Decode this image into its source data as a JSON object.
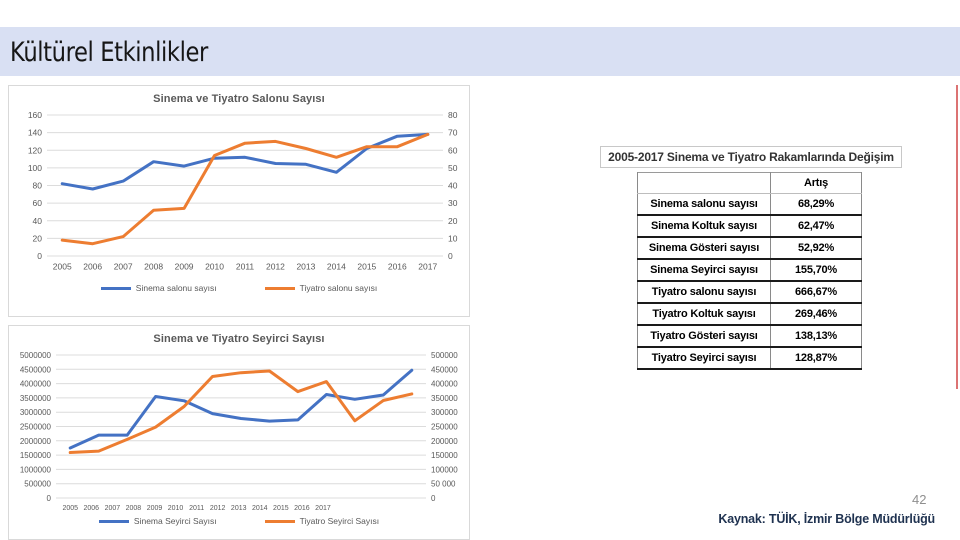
{
  "slide": {
    "title": "Kültürel Etkinlikler",
    "page_number": "42",
    "source": "Kaynak: TÜİK, İzmir Bölge Müdürlüğü"
  },
  "colors": {
    "banner_bg": "#D9E0F3",
    "series_blue": "#4472C4",
    "series_orange": "#ED7D31",
    "gridline": "#DCDCDC",
    "axis_text": "#595959",
    "accent_red": "#C00000"
  },
  "table": {
    "title": "2005-2017 Sinema ve Tiyatro Rakamlarında Değişim",
    "value_header": "Artış",
    "rows": [
      {
        "label": "Sinema salonu sayısı",
        "value": "68,29%"
      },
      {
        "label": "Sinema Koltuk sayısı",
        "value": "62,47%"
      },
      {
        "label": "Sinema Gösteri sayısı",
        "value": "52,92%"
      },
      {
        "label": "Sinema Seyirci sayısı",
        "value": "155,70%"
      },
      {
        "label": "Tiyatro salonu sayısı",
        "value": "666,67%"
      },
      {
        "label": "Tiyatro Koltuk sayısı",
        "value": "269,46%"
      },
      {
        "label": "Tiyatro Gösteri sayısı",
        "value": "138,13%"
      },
      {
        "label": "Tiyatro Seyirci sayısı",
        "value": "128,87%"
      }
    ]
  },
  "chart_data": [
    {
      "type": "line",
      "title": "Sinema ve Tiyatro Salonu Sayısı",
      "categories": [
        "2005",
        "2006",
        "2007",
        "2008",
        "2009",
        "2010",
        "2011",
        "2012",
        "2013",
        "2014",
        "2015",
        "2016",
        "2017"
      ],
      "grid": true,
      "legend_position": "bottom",
      "axes": {
        "left": {
          "min": 0,
          "max": 160,
          "step": 20,
          "ticks": [
            "160",
            "140",
            "120",
            "100",
            "80",
            "60",
            "40",
            "20",
            "0"
          ]
        },
        "right": {
          "min": 0,
          "max": 80,
          "step": 10,
          "ticks": [
            "80",
            "70",
            "60",
            "50",
            "40",
            "30",
            "20",
            "10",
            "0"
          ]
        }
      },
      "series": [
        {
          "name": "Sinema salonu sayısı",
          "axis": "left",
          "color": "#4472C4",
          "values": [
            82,
            76,
            85,
            107,
            102,
            111,
            112,
            105,
            104,
            95,
            122,
            136,
            138
          ]
        },
        {
          "name": "Tiyatro salonu sayısı",
          "axis": "right",
          "color": "#ED7D31",
          "values": [
            9,
            7,
            11,
            26,
            27,
            57,
            64,
            65,
            61,
            56,
            62,
            62,
            69
          ]
        }
      ]
    },
    {
      "type": "line",
      "title": "Sinema ve Tiyatro Seyirci Sayısı",
      "categories": [
        "2005",
        "2006",
        "2007",
        "2008",
        "2009",
        "2010",
        "2011",
        "2012",
        "2013",
        "2014",
        "2015",
        "2016",
        "2017"
      ],
      "grid": true,
      "legend_position": "bottom",
      "axes": {
        "left": {
          "min": 0,
          "max": 5000000,
          "step": 500000,
          "ticks": [
            "5000000",
            "4500000",
            "4000000",
            "3500000",
            "3000000",
            "2500000",
            "2000000",
            "1500000",
            "1000000",
            "500000",
            "0"
          ]
        },
        "right": {
          "min": 0,
          "max": 500000,
          "step": 50000,
          "ticks": [
            "500000",
            "450000",
            "400000",
            "350000",
            "300000",
            "250000",
            "200000",
            "150000",
            "100000",
            "50 000",
            "0"
          ]
        }
      },
      "series": [
        {
          "name": "Sinema Seyirci Sayısı",
          "axis": "left",
          "color": "#4472C4",
          "values": [
            1750000,
            2200000,
            2200000,
            3550000,
            3400000,
            2950000,
            2780000,
            2690000,
            2730000,
            3620000,
            3450000,
            3600000,
            4470000
          ]
        },
        {
          "name": "Tiyatro Seyirci Sayısı",
          "axis": "right",
          "color": "#ED7D31",
          "values": [
            159000,
            164000,
            205000,
            248000,
            320000,
            425000,
            438000,
            444000,
            372000,
            407000,
            270000,
            341000,
            364000
          ]
        }
      ]
    }
  ]
}
